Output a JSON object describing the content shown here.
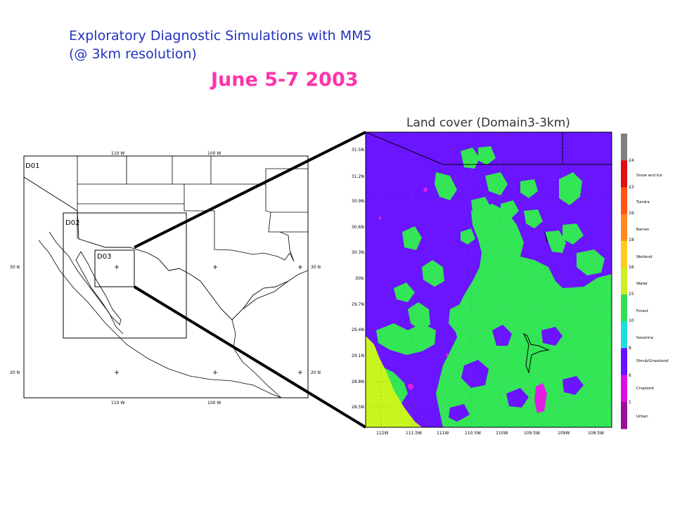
{
  "header": {
    "title_line1": "Exploratory Diagnostic Simulations with MM5",
    "title_line2": "(@ 3km resolution)",
    "date": "June 5-7 2003"
  },
  "left_map": {
    "domain_labels": [
      "D01",
      "D02",
      "D03"
    ],
    "top_lon_labels": [
      "110 W",
      "100 W"
    ],
    "bottom_lon_labels": [
      "110 W",
      "100 W"
    ],
    "left_lat_labels": [
      "30 N",
      "20 N"
    ],
    "right_lat_labels": [
      "30 N",
      "20 N"
    ]
  },
  "land_cover_map": {
    "title": "Land cover (Domain3-3km)",
    "lat_labels": [
      "31.5N",
      "31.2N",
      "30.9N",
      "30.6N",
      "30.3N",
      "30N",
      "29.7N",
      "29.4N",
      "29.1N",
      "28.8N",
      "28.5N"
    ],
    "lon_labels": [
      "112W",
      "111.5W",
      "111W",
      "110.5W",
      "110W",
      "109.5W",
      "109W",
      "108.5W"
    ],
    "colors": {
      "shrub_grassland": "#6a14ff",
      "forest": "#33e655",
      "water": "#c8f51e",
      "cropland": "#e21ee6"
    }
  },
  "legend": {
    "ticks": [
      "24",
      "23",
      "19",
      "18",
      "16",
      "15",
      "10",
      "8",
      "6",
      "1"
    ],
    "categories": [
      "Snow and Ice",
      "Tundra",
      "Barren",
      "Wetland",
      "Water",
      "Forest",
      "Savanna",
      "Shrub/Grassland",
      "Cropland",
      "Urban"
    ],
    "colors": [
      "#808080",
      "#dd1111",
      "#ff5511",
      "#ff8822",
      "#ffcc22",
      "#ccee22",
      "#33dd55",
      "#22dddd",
      "#6611ff",
      "#dd11dd",
      "#991199"
    ]
  }
}
